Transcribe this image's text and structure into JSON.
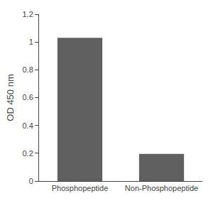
{
  "chart_data": {
    "type": "bar",
    "categories": [
      "Phosphopeptide",
      "Non-Phosphopeptide"
    ],
    "values": [
      1.03,
      0.195
    ],
    "color": "#606060",
    "ylabel": "OD 450 nm",
    "ylim": [
      0,
      1.2
    ],
    "yticks": [
      0,
      0.2,
      0.4,
      0.6,
      0.8,
      1,
      1.2
    ],
    "grid": false
  }
}
